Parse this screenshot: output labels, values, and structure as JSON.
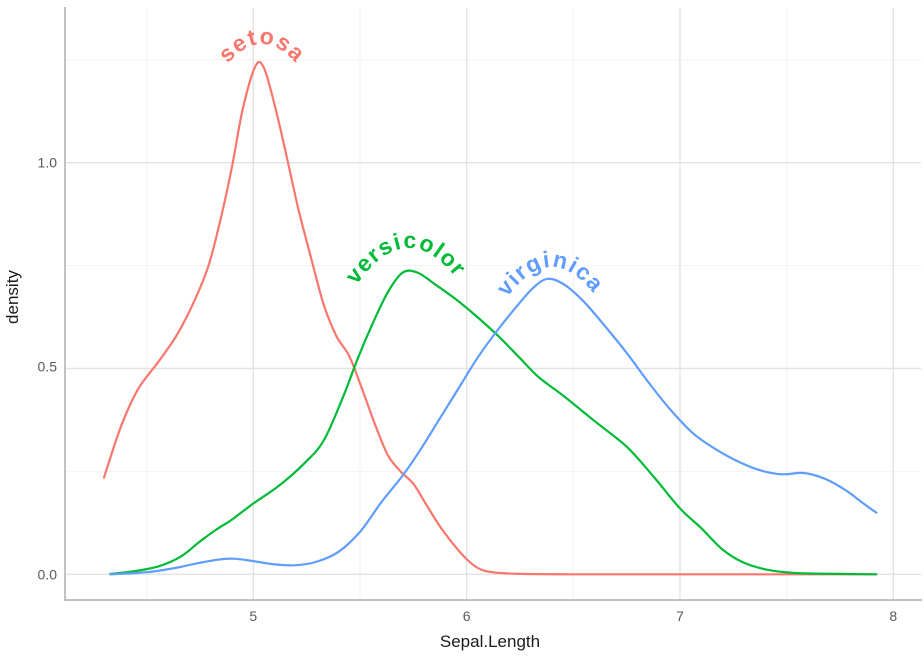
{
  "chart_data": {
    "type": "line",
    "subtype": "kernel-density",
    "title": "",
    "xlabel": "Sepal.Length",
    "ylabel": "density",
    "xlim": [
      4.12,
      8.13
    ],
    "ylim": [
      -0.063,
      1.38
    ],
    "grid": true,
    "legend_position": "direct curved labels on curves",
    "x_ticks": [
      5,
      6,
      7,
      8
    ],
    "x_tick_labels": [
      "5",
      "6",
      "7",
      "8"
    ],
    "x_minor_ticks": [
      4.5,
      5.5,
      6.5,
      7.5
    ],
    "y_ticks": [
      0.0,
      0.5,
      1.0
    ],
    "y_tick_labels": [
      "0.0",
      "0.5",
      "1.0"
    ],
    "y_minor_ticks": [
      0.25,
      0.75,
      1.25
    ],
    "series": [
      {
        "name": "setosa",
        "color": "#F8766D",
        "peak": {
          "x": 5.03,
          "density": 1.245
        },
        "points": [
          [
            4.3,
            0.235
          ],
          [
            4.38,
            0.36
          ],
          [
            4.46,
            0.45
          ],
          [
            4.56,
            0.52
          ],
          [
            4.64,
            0.58
          ],
          [
            4.72,
            0.66
          ],
          [
            4.79,
            0.75
          ],
          [
            4.85,
            0.87
          ],
          [
            4.9,
            0.99
          ],
          [
            4.95,
            1.13
          ],
          [
            5.01,
            1.235
          ],
          [
            5.05,
            1.23
          ],
          [
            5.1,
            1.14
          ],
          [
            5.15,
            1.03
          ],
          [
            5.21,
            0.89
          ],
          [
            5.27,
            0.77
          ],
          [
            5.33,
            0.655
          ],
          [
            5.39,
            0.578
          ],
          [
            5.45,
            0.53
          ],
          [
            5.51,
            0.45
          ],
          [
            5.57,
            0.365
          ],
          [
            5.63,
            0.29
          ],
          [
            5.69,
            0.25
          ],
          [
            5.75,
            0.22
          ],
          [
            5.81,
            0.17
          ],
          [
            5.87,
            0.12
          ],
          [
            5.93,
            0.078
          ],
          [
            5.99,
            0.042
          ],
          [
            6.05,
            0.016
          ],
          [
            6.12,
            0.005
          ],
          [
            6.25,
            0.001
          ],
          [
            6.5,
            0.0
          ],
          [
            7.0,
            0.0
          ],
          [
            7.5,
            0.0
          ],
          [
            7.92,
            0.0
          ]
        ]
      },
      {
        "name": "versicolor",
        "color": "#00BA38",
        "peak": {
          "x": 5.7,
          "density": 0.735
        },
        "points": [
          [
            4.33,
            0.001
          ],
          [
            4.45,
            0.008
          ],
          [
            4.56,
            0.02
          ],
          [
            4.66,
            0.043
          ],
          [
            4.75,
            0.08
          ],
          [
            4.83,
            0.11
          ],
          [
            4.9,
            0.133
          ],
          [
            5.0,
            0.172
          ],
          [
            5.12,
            0.215
          ],
          [
            5.24,
            0.27
          ],
          [
            5.33,
            0.325
          ],
          [
            5.42,
            0.43
          ],
          [
            5.49,
            0.525
          ],
          [
            5.56,
            0.61
          ],
          [
            5.63,
            0.685
          ],
          [
            5.7,
            0.733
          ],
          [
            5.77,
            0.733
          ],
          [
            5.85,
            0.705
          ],
          [
            5.95,
            0.668
          ],
          [
            6.05,
            0.625
          ],
          [
            6.15,
            0.578
          ],
          [
            6.25,
            0.525
          ],
          [
            6.34,
            0.478
          ],
          [
            6.45,
            0.435
          ],
          [
            6.6,
            0.372
          ],
          [
            6.75,
            0.31
          ],
          [
            6.88,
            0.235
          ],
          [
            7.0,
            0.16
          ],
          [
            7.1,
            0.112
          ],
          [
            7.2,
            0.06
          ],
          [
            7.3,
            0.028
          ],
          [
            7.42,
            0.01
          ],
          [
            7.55,
            0.003
          ],
          [
            7.75,
            0.001
          ],
          [
            7.92,
            0.0
          ]
        ]
      },
      {
        "name": "virginica",
        "color": "#619CFF",
        "peak": {
          "x": 6.38,
          "density": 0.72
        },
        "points": [
          [
            4.33,
            0.0
          ],
          [
            4.5,
            0.005
          ],
          [
            4.62,
            0.014
          ],
          [
            4.74,
            0.027
          ],
          [
            4.84,
            0.036
          ],
          [
            4.91,
            0.038
          ],
          [
            5.0,
            0.032
          ],
          [
            5.1,
            0.024
          ],
          [
            5.2,
            0.022
          ],
          [
            5.3,
            0.031
          ],
          [
            5.4,
            0.055
          ],
          [
            5.5,
            0.103
          ],
          [
            5.6,
            0.175
          ],
          [
            5.7,
            0.24
          ],
          [
            5.78,
            0.3
          ],
          [
            5.87,
            0.375
          ],
          [
            5.96,
            0.45
          ],
          [
            6.05,
            0.525
          ],
          [
            6.14,
            0.59
          ],
          [
            6.23,
            0.648
          ],
          [
            6.31,
            0.695
          ],
          [
            6.38,
            0.718
          ],
          [
            6.46,
            0.703
          ],
          [
            6.55,
            0.662
          ],
          [
            6.65,
            0.602
          ],
          [
            6.75,
            0.538
          ],
          [
            6.85,
            0.468
          ],
          [
            6.95,
            0.403
          ],
          [
            7.06,
            0.343
          ],
          [
            7.17,
            0.303
          ],
          [
            7.28,
            0.272
          ],
          [
            7.38,
            0.252
          ],
          [
            7.48,
            0.243
          ],
          [
            7.58,
            0.246
          ],
          [
            7.68,
            0.232
          ],
          [
            7.78,
            0.203
          ],
          [
            7.86,
            0.172
          ],
          [
            7.92,
            0.15
          ]
        ]
      }
    ]
  },
  "theme": {
    "background": "#FFFFFF",
    "panel_background": "#FFFFFF",
    "grid_major_color": "#E3E3E3",
    "grid_minor_color": "#F2F2F2",
    "axis_line_color": "#C2C2C2",
    "tick_text_color": "#595959",
    "axis_title_color": "#1A1A1A"
  }
}
